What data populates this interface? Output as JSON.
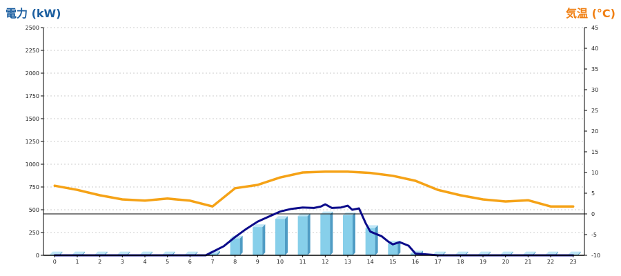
{
  "chart_data": {
    "type": "bar+line",
    "y_left_label": "電力 (kW)",
    "y_right_label": "気温 (°C)",
    "x_ticks": [
      "0",
      "1",
      "2",
      "3",
      "4",
      "5",
      "6",
      "7",
      "8",
      "9",
      "10",
      "11",
      "12",
      "13",
      "14",
      "15",
      "16",
      "17",
      "18",
      "19",
      "20",
      "21",
      "22",
      "23"
    ],
    "y_left_ticks": [
      "0",
      "250",
      "500",
      "750",
      "1000",
      "1250",
      "1500",
      "1750",
      "2000",
      "2250",
      "2500"
    ],
    "y_right_ticks": [
      "-10",
      "-5",
      "0",
      "5",
      "10",
      "15",
      "20",
      "25",
      "30",
      "35",
      "40",
      "45"
    ],
    "y_left_range": [
      0,
      2500
    ],
    "y_right_range": [
      -10,
      45
    ],
    "grid": true,
    "bars": {
      "x": [
        0,
        1,
        2,
        3,
        4,
        5,
        6,
        7,
        8,
        9,
        10,
        11,
        12,
        13,
        14,
        15,
        16,
        17,
        18,
        19,
        20,
        21,
        22,
        23
      ],
      "values": [
        10,
        10,
        10,
        10,
        10,
        10,
        10,
        20,
        185,
        310,
        400,
        430,
        450,
        440,
        300,
        130,
        20,
        10,
        10,
        10,
        10,
        10,
        10,
        10
      ]
    },
    "power_line": {
      "x": [
        0,
        1,
        2,
        3,
        4,
        5,
        6,
        6.7,
        7.5,
        8,
        8.5,
        9,
        9.5,
        10,
        10.5,
        11,
        11.5,
        11.8,
        12,
        12.3,
        12.7,
        13,
        13.2,
        13.5,
        13.8,
        14,
        14.5,
        14.8,
        15,
        15.3,
        15.7,
        16,
        17,
        18,
        19,
        20,
        21,
        22,
        23
      ],
      "values": [
        0,
        0,
        0,
        0,
        0,
        0,
        0,
        0,
        100,
        200,
        290,
        370,
        425,
        480,
        510,
        525,
        520,
        535,
        560,
        520,
        525,
        545,
        500,
        515,
        350,
        260,
        210,
        150,
        120,
        145,
        105,
        20,
        0,
        0,
        0,
        0,
        0,
        0,
        0
      ]
    },
    "temperature_line": {
      "x": [
        0,
        1,
        2,
        3,
        4,
        5,
        6,
        7,
        8,
        9,
        10,
        11,
        12,
        13,
        14,
        15,
        16,
        17,
        18,
        19,
        20,
        21,
        22,
        23
      ],
      "values": [
        6.8,
        5.8,
        4.5,
        3.5,
        3.2,
        3.7,
        3.2,
        1.8,
        6.2,
        7.0,
        8.8,
        10.0,
        10.2,
        10.2,
        9.9,
        9.2,
        8.0,
        5.8,
        4.5,
        3.5,
        3.0,
        3.3,
        1.8,
        1.8
      ]
    },
    "reference_line": {
      "temp_value": 0
    },
    "colors": {
      "bar": "#87cfea",
      "bar_side": "#4f9cc4",
      "bar_top": "#bfe6f6",
      "power_line": "#0b0b8a",
      "temperature_line": "#f5a216",
      "left_title": "#1c5fa0",
      "right_title": "#f07f12",
      "grid": "#cccccc",
      "axis": "#000000"
    }
  }
}
